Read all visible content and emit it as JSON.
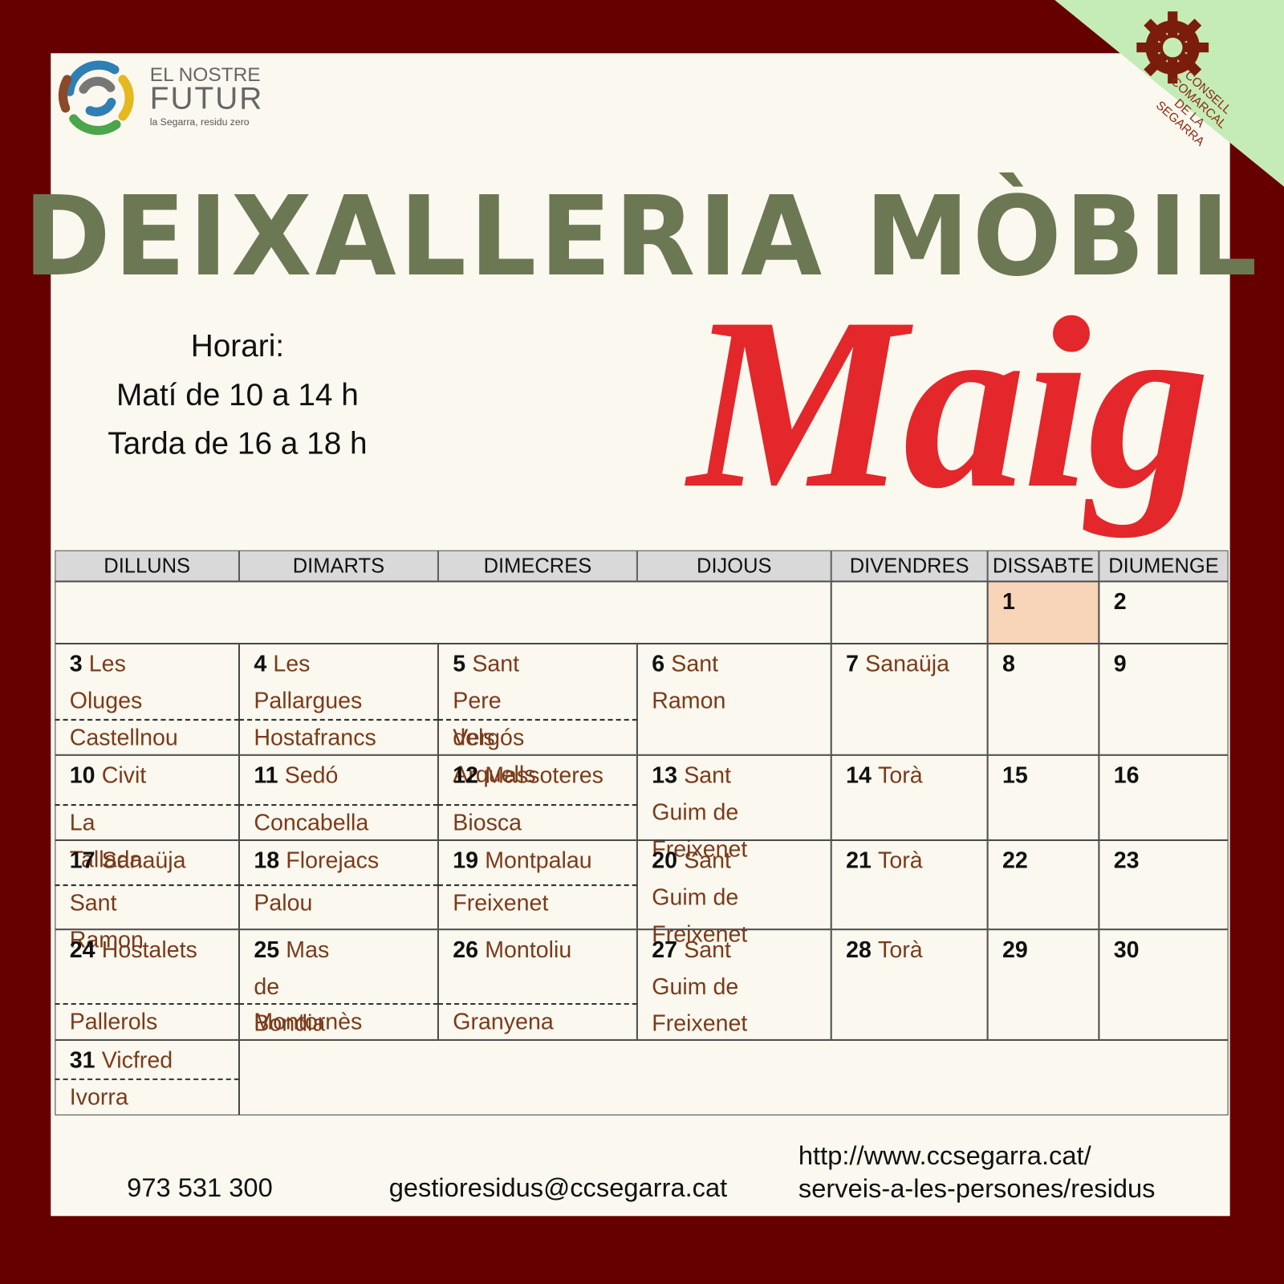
{
  "logo": {
    "line1": "EL NOSTRE",
    "line2": "FUTUR",
    "tagline": "la Segarra, residu zero"
  },
  "badge": [
    "CONSELL",
    "COMARCAL",
    "DE LA",
    "SEGARRA"
  ],
  "title": "DEIXALLERIA MÒBIL",
  "month": "Maig",
  "schedule": [
    "Horari:",
    "Matí de 10 a 14 h",
    "Tarda de 16 a 18 h"
  ],
  "calendar": {
    "days": [
      "DILLUNS",
      "DIMARTS",
      "DIMECRES",
      "DIJOUS",
      "DIVENDRES",
      "DISSABTE",
      "DIUMENGE"
    ],
    "weeks": [
      [
        {
          "day": 1
        },
        {
          "day": 2
        }
      ],
      [
        {
          "day": 3,
          "place": "Les Oluges",
          "place2": "Castellnou"
        },
        {
          "day": 4,
          "place": "Les Pallargues",
          "place2": "Hostafrancs"
        },
        {
          "day": 5,
          "place": "Sant Pere dels Arquells",
          "place2": "Vergós"
        },
        {
          "day": 6,
          "place": "Sant Ramon"
        },
        {
          "day": 7,
          "place": "Sanaüja"
        },
        {
          "day": 8
        },
        {
          "day": 9
        }
      ],
      [
        {
          "day": 10,
          "place": "Civit",
          "place2": "La Tallada"
        },
        {
          "day": 11,
          "place": "Sedó",
          "place2": "Concabella"
        },
        {
          "day": 12,
          "place": "Massoteres",
          "place2": "Biosca"
        },
        {
          "day": 13,
          "place": "Sant Guim de Freixenet"
        },
        {
          "day": 14,
          "place": "Torà"
        },
        {
          "day": 15
        },
        {
          "day": 16
        }
      ],
      [
        {
          "day": 17,
          "place": "Sanaüja",
          "place2": "Sant Ramon"
        },
        {
          "day": 18,
          "place": "Florejacs",
          "place2": "Palou"
        },
        {
          "day": 19,
          "place": "Montpalau",
          "place2": "Freixenet"
        },
        {
          "day": 20,
          "place": "Sant Guim de Freixenet"
        },
        {
          "day": 21,
          "place": "Torà"
        },
        {
          "day": 22
        },
        {
          "day": 23
        }
      ],
      [
        {
          "day": 24,
          "place": "Hostalets",
          "place2": "Pallerols"
        },
        {
          "day": 25,
          "place": "Mas de Bondia",
          "place2": "Montornès"
        },
        {
          "day": 26,
          "place": "Montoliu",
          "place2": "Granyena"
        },
        {
          "day": 27,
          "place": "Sant Guim de Freixenet"
        },
        {
          "day": 28,
          "place": "Torà"
        },
        {
          "day": 29
        },
        {
          "day": 30
        }
      ],
      [
        {
          "day": 31,
          "place": "Vicfred",
          "place2": "Ivorra"
        }
      ]
    ]
  },
  "footer": {
    "phone": "973 531 300",
    "email": "gestioresidus@ccsegarra.cat",
    "url": [
      "http://www.ccsegarra.cat/",
      "serveis-a-les-persones/residus"
    ]
  }
}
